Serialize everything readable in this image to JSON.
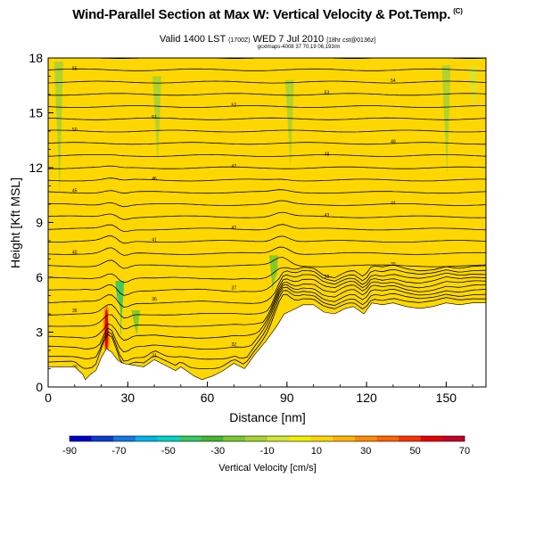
{
  "header": {
    "title": "Wind-Parallel Section at Max W: Vertical Velocity & Pot.Temp.",
    "title_mark": "(C)",
    "valid_prefix": "Valid 1400 LST",
    "valid_small": "(1700Z)",
    "valid_date": "WED 7 Jul 2010",
    "valid_suffix": "[18hr cst@0136z]",
    "location": "gcxtmaps-4008 37 70,19 06,193/m"
  },
  "chart_data": {
    "type": "heatmap",
    "xlabel": "Distance [nm]",
    "ylabel": "Height [Kft MSL]",
    "xlim": [
      0,
      165
    ],
    "ylim": [
      0,
      18
    ],
    "xticks": [
      0,
      30,
      60,
      90,
      120,
      150
    ],
    "yticks": [
      0,
      3,
      6,
      9,
      12,
      15,
      18
    ],
    "colorbar": {
      "label": "Vertical Velocity [cm/s]",
      "ticks": [
        -90,
        -70,
        -50,
        -30,
        -10,
        10,
        30,
        50,
        70
      ],
      "colors": [
        "#0000c8",
        "#0a3cd2",
        "#1478e6",
        "#00b4e6",
        "#00d2c8",
        "#32c864",
        "#46b432",
        "#78c832",
        "#aad232",
        "#d2e632",
        "#f0f000",
        "#ffd700",
        "#ffb400",
        "#ff8c00",
        "#ff6400",
        "#ff3200",
        "#e60000",
        "#c80028"
      ]
    },
    "terrain_kft": [
      [
        0,
        1.1
      ],
      [
        10,
        1.1
      ],
      [
        13,
        0.7
      ],
      [
        14,
        0.4
      ],
      [
        16,
        0.7
      ],
      [
        18,
        0.9
      ],
      [
        20,
        1.6
      ],
      [
        22,
        2.1
      ],
      [
        24,
        1.9
      ],
      [
        26,
        1.5
      ],
      [
        28,
        1.3
      ],
      [
        32,
        1.2
      ],
      [
        36,
        1.1
      ],
      [
        40,
        1.5
      ],
      [
        44,
        1.2
      ],
      [
        48,
        0.9
      ],
      [
        50,
        1.1
      ],
      [
        55,
        0.6
      ],
      [
        58,
        0.4
      ],
      [
        62,
        0.6
      ],
      [
        66,
        0.9
      ],
      [
        70,
        1.3
      ],
      [
        74,
        1.0
      ],
      [
        78,
        1.8
      ],
      [
        82,
        2.5
      ],
      [
        86,
        3.3
      ],
      [
        89,
        4.0
      ],
      [
        92,
        4.2
      ],
      [
        96,
        4.5
      ],
      [
        100,
        4.5
      ],
      [
        104,
        4.1
      ],
      [
        108,
        4.0
      ],
      [
        112,
        4.3
      ],
      [
        115,
        4.4
      ],
      [
        119,
        4.0
      ],
      [
        122,
        4.6
      ],
      [
        126,
        4.5
      ],
      [
        130,
        4.6
      ],
      [
        135,
        4.4
      ],
      [
        140,
        4.3
      ],
      [
        145,
        4.4
      ],
      [
        150,
        4.6
      ],
      [
        155,
        4.5
      ],
      [
        160,
        4.6
      ],
      [
        165,
        4.6
      ]
    ],
    "updrafts": [
      {
        "x": 22,
        "bottom": 1.8,
        "top": 4.5,
        "w": 30
      },
      {
        "x": 25,
        "bottom": 2.4,
        "top": 5.0,
        "w": 15
      },
      {
        "x": 87,
        "bottom": 4.0,
        "top": 6.2,
        "w": 12
      },
      {
        "x": 118,
        "bottom": 4.9,
        "top": 5.5,
        "w": 12
      },
      {
        "x": 110,
        "bottom": 5.0,
        "top": 5.6,
        "w": 10
      }
    ],
    "downdrafts": [
      {
        "x": 4,
        "bottom": 10.5,
        "top": 17.8,
        "w": -12
      },
      {
        "x": 27,
        "bottom": 2.8,
        "top": 5.8,
        "w": -40
      },
      {
        "x": 33,
        "bottom": 2.8,
        "top": 4.2,
        "w": -20
      },
      {
        "x": 41,
        "bottom": 12.2,
        "top": 17.0,
        "w": -12
      },
      {
        "x": 85,
        "bottom": 4.2,
        "top": 7.2,
        "w": -20
      },
      {
        "x": 91,
        "bottom": 12.0,
        "top": 16.8,
        "w": -12
      },
      {
        "x": 150,
        "bottom": 11.5,
        "top": 17.6,
        "w": -15
      },
      {
        "x": 160,
        "bottom": 15.0,
        "top": 17.5,
        "w": -10
      }
    ],
    "contour_labels": [
      "30",
      "31",
      "32",
      "33",
      "34",
      "35",
      "36",
      "37",
      "38",
      "39",
      "40",
      "41",
      "42",
      "43",
      "44",
      "45",
      "46",
      "47",
      "48",
      "49",
      "50",
      "51",
      "52",
      "53",
      "54",
      "55",
      "56",
      "57",
      "58"
    ]
  }
}
